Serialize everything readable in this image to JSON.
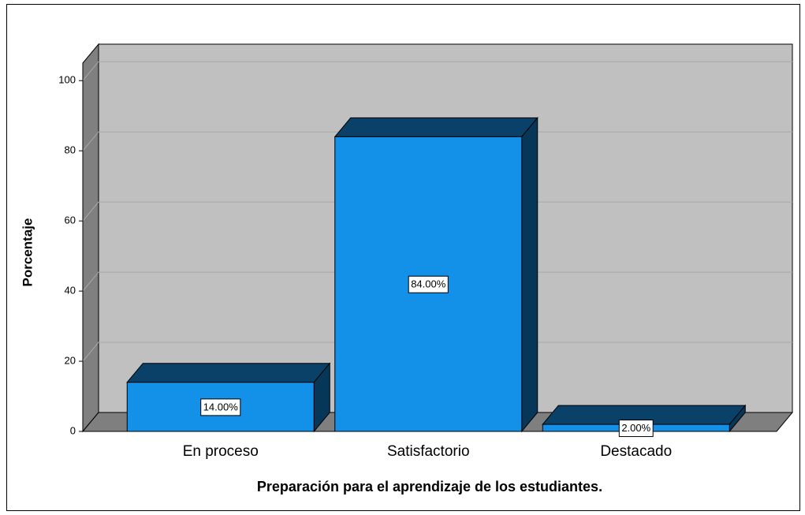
{
  "chart_data": {
    "type": "bar3d",
    "x_label": "Preparación para el aprendizaje de los estudiantes.",
    "y_label": "Porcentaje",
    "categories": [
      "En proceso",
      "Satisfactorio",
      "Destacado"
    ],
    "values": [
      14,
      84,
      2
    ],
    "value_labels": [
      "14.00%",
      "84.00%",
      "2.00%"
    ],
    "color": "#1390e8",
    "ylim": [
      0,
      105
    ],
    "yticks": [
      0,
      20,
      40,
      60,
      80,
      100
    ],
    "grid": true
  }
}
